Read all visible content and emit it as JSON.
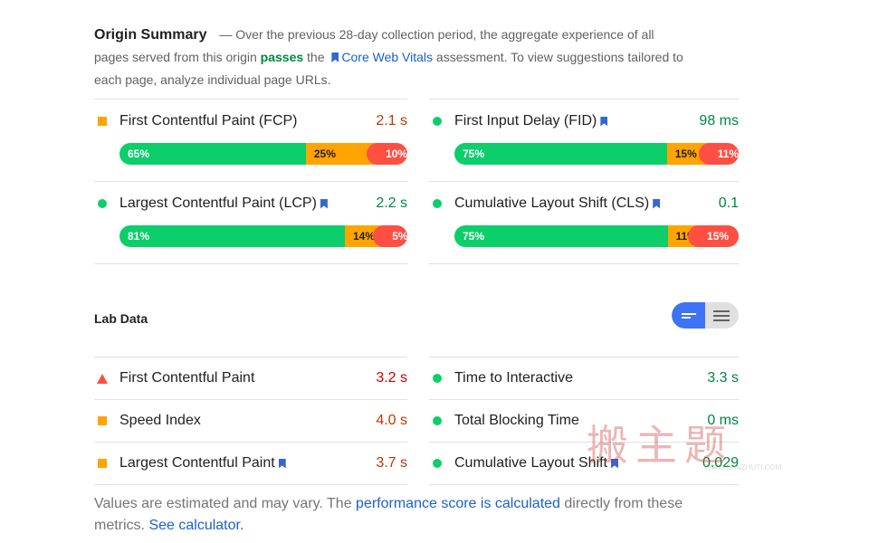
{
  "origin_summary": {
    "title": "Origin Summary",
    "text_before": "— Over the previous 28-day collection period, the aggregate experience of all pages served from this origin",
    "passes": "passes",
    "text_the": "the",
    "link": "Core Web Vitals",
    "text_after": "assessment. To view suggestions tailored to each page, analyze individual page URLs."
  },
  "field_metrics": [
    {
      "name": "First Contentful Paint (FCP)",
      "value": "2.1 s",
      "rating": "average",
      "cwv": false,
      "distribution": [
        65,
        25,
        10
      ],
      "distribution_labels": [
        "65%",
        "25%",
        "10%"
      ]
    },
    {
      "name": "First Input Delay (FID)",
      "value": "98 ms",
      "rating": "pass",
      "cwv": true,
      "distribution": [
        75,
        15,
        11
      ],
      "distribution_labels": [
        "75%",
        "15%",
        "11%"
      ]
    },
    {
      "name": "Largest Contentful Paint (LCP)",
      "value": "2.2 s",
      "rating": "pass",
      "cwv": true,
      "distribution": [
        81,
        14,
        5
      ],
      "distribution_labels": [
        "81%",
        "14%",
        "5%"
      ]
    },
    {
      "name": "Cumulative Layout Shift (CLS)",
      "value": "0.1",
      "rating": "pass",
      "cwv": true,
      "distribution": [
        75,
        11,
        15
      ],
      "distribution_labels": [
        "75%",
        "11%",
        "15%"
      ]
    }
  ],
  "lab_data": {
    "title": "Lab Data",
    "metrics": [
      {
        "name": "First Contentful Paint",
        "value": "3.2 s",
        "rating": "fail",
        "cwv": false
      },
      {
        "name": "Time to Interactive",
        "value": "3.3 s",
        "rating": "pass",
        "cwv": false
      },
      {
        "name": "Speed Index",
        "value": "4.0 s",
        "rating": "average",
        "cwv": false
      },
      {
        "name": "Total Blocking Time",
        "value": "0 ms",
        "rating": "pass",
        "cwv": false
      },
      {
        "name": "Largest Contentful Paint",
        "value": "3.7 s",
        "rating": "average",
        "cwv": true
      },
      {
        "name": "Cumulative Layout Shift",
        "value": "0.029",
        "rating": "pass",
        "cwv": true
      }
    ]
  },
  "footer": {
    "text_before": "Values are estimated and may vary. The",
    "link1": "performance score is calculated",
    "text_middle": "directly from these metrics.",
    "link2": "See calculator."
  },
  "watermark": {
    "logo": "搬主题",
    "url": "WWW.BANZHUTI.COM"
  }
}
